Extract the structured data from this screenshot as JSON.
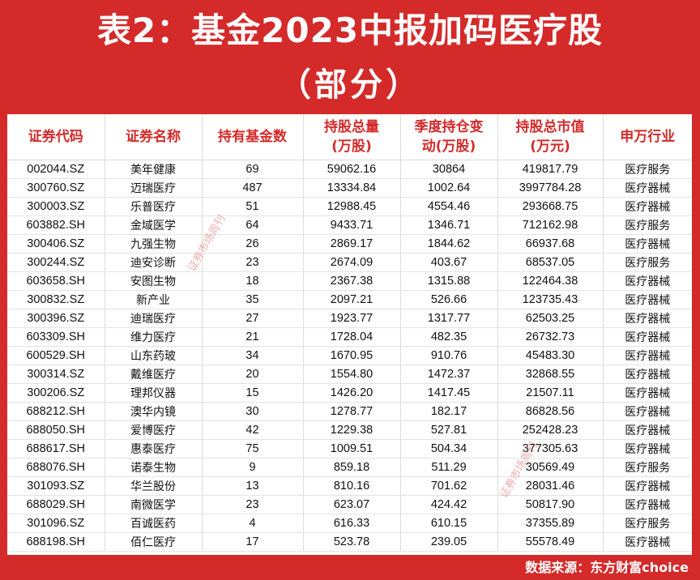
{
  "title": {
    "line1": "表2：基金2023中报加码医疗股",
    "line2": "（部分）"
  },
  "table": {
    "headers": [
      {
        "line1": "证券代码",
        "line2": ""
      },
      {
        "line1": "证券名称",
        "line2": ""
      },
      {
        "line1": "持有基金数",
        "line2": ""
      },
      {
        "line1": "持股总量",
        "line2": "(万股)"
      },
      {
        "line1": "季度持仓变",
        "line2": "动(万股)"
      },
      {
        "line1": "持股总市值",
        "line2": "(万元)"
      },
      {
        "line1": "申万行业",
        "line2": ""
      }
    ],
    "rows": [
      [
        "002044.SZ",
        "美年健康",
        "69",
        "59062.16",
        "30864",
        "419817.79",
        "医疗服务"
      ],
      [
        "300760.SZ",
        "迈瑞医疗",
        "487",
        "13334.84",
        "1002.64",
        "3997784.28",
        "医疗器械"
      ],
      [
        "300003.SZ",
        "乐普医疗",
        "51",
        "12988.45",
        "4554.46",
        "293668.75",
        "医疗器械"
      ],
      [
        "603882.SH",
        "金域医学",
        "64",
        "9433.71",
        "1346.71",
        "712162.98",
        "医疗服务"
      ],
      [
        "300406.SZ",
        "九强生物",
        "26",
        "2869.17",
        "1844.62",
        "66937.68",
        "医疗器械"
      ],
      [
        "300244.SZ",
        "迪安诊断",
        "23",
        "2674.09",
        "403.67",
        "68537.05",
        "医疗服务"
      ],
      [
        "603658.SH",
        "安图生物",
        "18",
        "2367.38",
        "1315.88",
        "122464.38",
        "医疗器械"
      ],
      [
        "300832.SZ",
        "新产业",
        "35",
        "2097.21",
        "526.66",
        "123735.43",
        "医疗器械"
      ],
      [
        "300396.SZ",
        "迪瑞医疗",
        "27",
        "1923.77",
        "1317.77",
        "62503.25",
        "医疗器械"
      ],
      [
        "603309.SH",
        "维力医疗",
        "21",
        "1728.04",
        "482.35",
        "26732.73",
        "医疗器械"
      ],
      [
        "600529.SH",
        "山东药玻",
        "34",
        "1670.95",
        "910.76",
        "45483.30",
        "医疗器械"
      ],
      [
        "300314.SZ",
        "戴维医疗",
        "20",
        "1554.80",
        "1472.37",
        "32868.55",
        "医疗器械"
      ],
      [
        "300206.SZ",
        "理邦仪器",
        "15",
        "1426.20",
        "1417.45",
        "21507.11",
        "医疗器械"
      ],
      [
        "688212.SH",
        "澳华内镜",
        "30",
        "1278.77",
        "182.17",
        "86828.56",
        "医疗器械"
      ],
      [
        "688050.SH",
        "爱博医疗",
        "42",
        "1229.38",
        "527.81",
        "252428.23",
        "医疗器械"
      ],
      [
        "688617.SH",
        "惠泰医疗",
        "75",
        "1009.51",
        "504.34",
        "377305.63",
        "医疗器械"
      ],
      [
        "688076.SH",
        "诺泰生物",
        "9",
        "859.18",
        "511.29",
        "30569.49",
        "医疗服务"
      ],
      [
        "301093.SZ",
        "华兰股份",
        "13",
        "810.16",
        "701.62",
        "28031.46",
        "医疗器械"
      ],
      [
        "688029.SH",
        "南微医学",
        "23",
        "623.07",
        "424.42",
        "50817.90",
        "医疗器械"
      ],
      [
        "301096.SZ",
        "百诚医药",
        "4",
        "616.33",
        "610.15",
        "37355.89",
        "医疗服务"
      ],
      [
        "688198.SH",
        "佰仁医疗",
        "17",
        "523.78",
        "239.05",
        "55578.49",
        "医疗器械"
      ]
    ]
  },
  "footer": {
    "source": "数据来源：东方财富choice"
  },
  "watermarks": [
    "证券市场周刊",
    "证券市场周刊"
  ],
  "colors": {
    "background": "#d42a2a",
    "header_text": "#d42a2a",
    "title_text": "#ffffff"
  }
}
